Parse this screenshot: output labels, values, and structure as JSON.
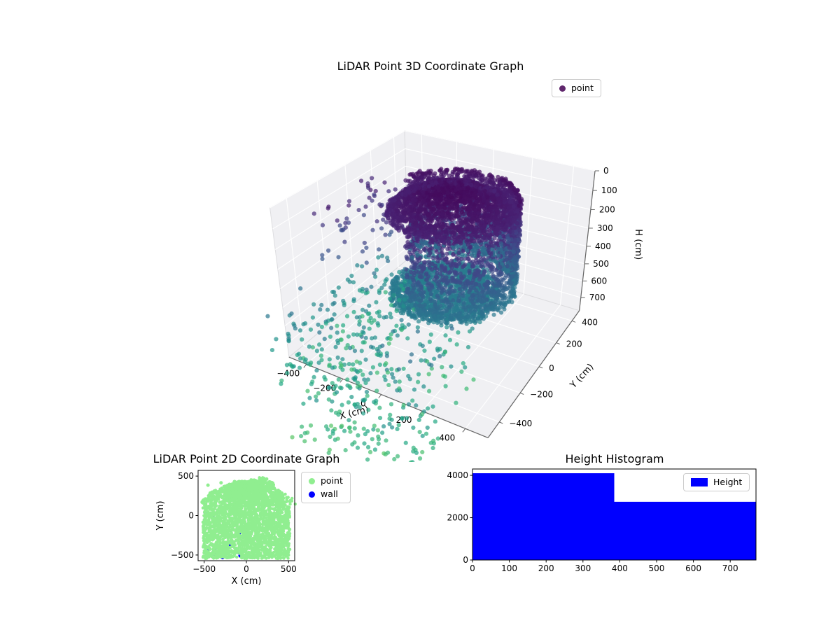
{
  "figure": {
    "background": "#ffffff"
  },
  "chart_data": [
    {
      "id": "scatter3d",
      "type": "scatter3d",
      "title": "LiDAR Point 3D Coordinate Graph",
      "xlabel": "X (cm)",
      "ylabel": "Y (cm)",
      "zlabel": "H (cm)",
      "xlim": [
        -500,
        500
      ],
      "ylim": [
        -500,
        500
      ],
      "zlim": [
        0,
        780
      ],
      "xticks": [
        -400,
        -200,
        0,
        200,
        400
      ],
      "yticks": [
        -400,
        -200,
        0,
        200,
        400
      ],
      "zticks": [
        0,
        100,
        200,
        300,
        400,
        500,
        600,
        700
      ],
      "z_inverted": true,
      "view": {
        "azim": -60,
        "elev": 30,
        "zaspect": 0.72
      },
      "legend": [
        {
          "label": "point",
          "color": "#440154"
        }
      ],
      "colormap": "viridis",
      "color_norm": [
        0,
        1350
      ],
      "marker": {
        "radius": 3.1,
        "alpha": 0.7
      },
      "pane_color": "#f0f0f3",
      "grid_color": "#ffffff",
      "edge_color": "#666666",
      "clusters": [
        {
          "kind": "floor",
          "cx": 0,
          "cy": 40,
          "r": 255,
          "h0": 555,
          "noise": 55,
          "n": 1500
        },
        {
          "kind": "grid",
          "x": [
            -540,
            -20
          ],
          "y": [
            -560,
            280
          ],
          "step": 38,
          "hmin": 560,
          "hmax": 900,
          "keep": 0.6,
          "exclude_r": 300,
          "exclude_center": [
            0,
            40
          ]
        },
        {
          "kind": "grid",
          "x": [
            -180,
            320
          ],
          "y": [
            -740,
            -500
          ],
          "step": 40,
          "hmin": 620,
          "hmax": 920,
          "keep": 0.6
        },
        {
          "kind": "scatter",
          "n": 220,
          "x": [
            -560,
            260
          ],
          "y": [
            -640,
            60
          ],
          "h": [
            480,
            950
          ]
        },
        {
          "kind": "scatter",
          "n": 70,
          "x": [
            -320,
            320
          ],
          "y": [
            -780,
            -520
          ],
          "h": [
            780,
            1000
          ]
        },
        {
          "kind": "scatter",
          "n": 70,
          "x": [
            -520,
            -240
          ],
          "y": [
            -260,
            260
          ],
          "h": [
            90,
            420
          ]
        },
        {
          "kind": "wall",
          "cx": 20,
          "cy": 60,
          "r": 290,
          "r_noise": 22,
          "hmin": 55,
          "hmax": 540,
          "gap_center_deg": 210,
          "gap_half_deg": 48,
          "hbias": 1.25,
          "n": 2800
        },
        {
          "kind": "ceiling",
          "cx": 20,
          "cy": 60,
          "r": 285,
          "h0": 40,
          "sag": 90,
          "noise": 28,
          "n": 2400
        }
      ]
    },
    {
      "id": "scatter2d",
      "type": "scatter2d",
      "title": "LiDAR Point 2D Coordinate Graph",
      "xlabel": "X (cm)",
      "ylabel": "Y (cm)",
      "xlim": [
        -572,
        572
      ],
      "ylim": [
        -572,
        572
      ],
      "xticks": [
        -500,
        0,
        500
      ],
      "yticks": [
        -500,
        0,
        500
      ],
      "legend": [
        {
          "label": "point",
          "color": "#90ee90"
        },
        {
          "label": "wall",
          "color": "#0000ff"
        }
      ],
      "marker": {
        "radius": 2.2
      },
      "blob": {
        "n": 3000,
        "half_width": 515,
        "y_bottom": -545,
        "y_mid": 140,
        "y_top": 435,
        "shrink": 0.78,
        "pow": 1.6
      },
      "bumps": [
        {
          "x": 190,
          "y": 440,
          "r": 45,
          "n": 150
        },
        {
          "x": 95,
          "y": 400,
          "r": 55,
          "n": 120
        },
        {
          "x": -60,
          "y": 360,
          "r": 65,
          "n": 100
        },
        {
          "x": 285,
          "y": 385,
          "r": 50,
          "n": 90
        },
        {
          "x": 380,
          "y": 265,
          "r": 50,
          "n": 70
        },
        {
          "x": -200,
          "y": 300,
          "r": 70,
          "n": 80
        }
      ],
      "satellites": [
        [
          -455,
          385
        ],
        [
          -380,
          310
        ],
        [
          -300,
          415
        ],
        [
          -240,
          330
        ],
        [
          -140,
          430
        ],
        [
          160,
          470
        ],
        [
          240,
          462
        ],
        [
          355,
          300
        ],
        [
          410,
          220
        ],
        [
          448,
          140
        ],
        [
          -500,
          180
        ],
        [
          330,
          345
        ]
      ],
      "wall_points": {
        "n": 24,
        "x": [
          -500,
          500
        ],
        "y": [
          -540,
          80
        ]
      }
    },
    {
      "id": "histogram",
      "type": "bar",
      "title": "Height Histogram",
      "bin_edges": [
        0,
        385,
        770
      ],
      "counts": [
        4100,
        2750
      ],
      "xlim": [
        0,
        770
      ],
      "ylim": [
        0,
        4300
      ],
      "xticks": [
        0,
        100,
        200,
        300,
        400,
        500,
        600,
        700
      ],
      "yticks": [
        0,
        2000,
        4000
      ],
      "bar_color": "#0000ff",
      "legend": [
        {
          "label": "Height",
          "color": "#0000ff"
        }
      ]
    }
  ]
}
